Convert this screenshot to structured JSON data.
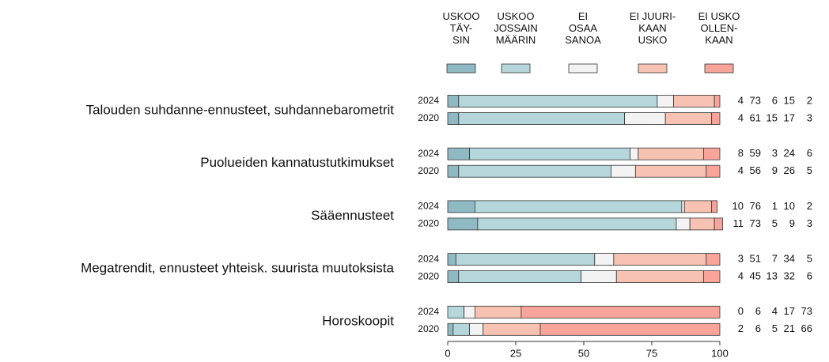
{
  "chart_data": {
    "type": "stacked-bar-horizontal",
    "groups": [
      "Talouden suhdanne-ennusteet, suhdannebarometrit",
      "Puolueiden kannatustutkimukset",
      "Sääennusteet",
      "Megatrendit, ennusteet yhteisk. suurista muutoksista",
      "Horoskoopit"
    ],
    "years": [
      "2024",
      "2020",
      "2024",
      "2020",
      "2024",
      "2020",
      "2024",
      "2020",
      "2024",
      "2020"
    ],
    "series": [
      {
        "name": "USKOO\nTÄY-\nSIN",
        "color": "#8fb9c3",
        "values": [
          4,
          4,
          8,
          4,
          10,
          11,
          3,
          4,
          0,
          2
        ]
      },
      {
        "name": "USKOO\nJOSSAIN\nMÄÄRIN",
        "color": "#b5d7db",
        "values": [
          73,
          61,
          59,
          56,
          76,
          73,
          51,
          45,
          6,
          6
        ]
      },
      {
        "name": "EI\nOSAA\nSANOA",
        "color": "#f3f3f3",
        "values": [
          6,
          15,
          3,
          9,
          1,
          5,
          7,
          13,
          4,
          5
        ]
      },
      {
        "name": "EI JUURI-\nKAAN\nUSKO",
        "color": "#f7c2b2",
        "values": [
          15,
          17,
          24,
          26,
          10,
          9,
          34,
          32,
          17,
          21
        ]
      },
      {
        "name": "EI USKO\nOLLEN-\nKAAN",
        "color": "#f8a49b",
        "values": [
          2,
          3,
          6,
          5,
          2,
          3,
          5,
          6,
          73,
          66
        ]
      }
    ],
    "xlim": [
      0,
      100
    ],
    "xticks": [
      0,
      25,
      50,
      75,
      100
    ]
  }
}
